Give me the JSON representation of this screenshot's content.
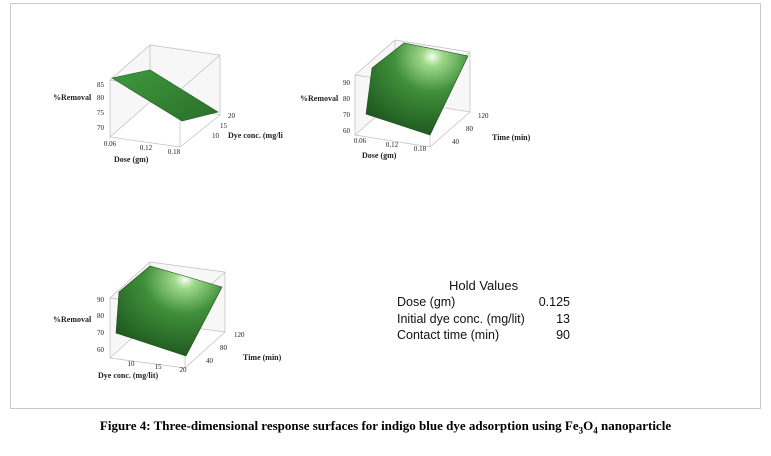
{
  "chart_data": [
    {
      "type": "surface",
      "zlabel": "%Removal",
      "xlabel": "Dose (gm)",
      "ylabel": "Dye conc. (mg/li",
      "z_ticks": [
        "85",
        "80",
        "75",
        "70"
      ],
      "x_ticks": [
        "0.06",
        "0.12",
        "0.18"
      ],
      "y_ticks": [
        "20",
        "15",
        "10"
      ],
      "zlim": [
        70,
        85
      ],
      "surface": {
        "trend": "decreasing with dose",
        "approx_range": [
          75,
          86
        ]
      },
      "color": "#2f7a2f"
    },
    {
      "type": "surface",
      "zlabel": "%Removal",
      "xlabel": "Dose (gm)",
      "ylabel": "Time (min)",
      "z_ticks": [
        "90",
        "80",
        "70",
        "60"
      ],
      "x_ticks": [
        "0.06",
        "0.12",
        "0.18"
      ],
      "y_ticks": [
        "120",
        "80",
        "40"
      ],
      "zlim": [
        60,
        90
      ],
      "surface": {
        "trend": "increasing with time",
        "approx_range": [
          60,
          95
        ]
      },
      "color": "#2f7a2f"
    },
    {
      "type": "surface",
      "zlabel": "%Removal",
      "xlabel": "Dye conc. (mg/lit)",
      "ylabel": "Time (min)",
      "z_ticks": [
        "90",
        "80",
        "70",
        "60"
      ],
      "x_ticks": [
        "10",
        "15",
        "20"
      ],
      "y_ticks": [
        "120",
        "80",
        "40"
      ],
      "zlim": [
        60,
        90
      ],
      "surface": {
        "trend": "increasing with time",
        "approx_range": [
          62,
          95
        ]
      },
      "color": "#2f7a2f"
    }
  ],
  "hold_values": {
    "title": "Hold Values",
    "rows": [
      {
        "label": "Dose (gm)",
        "value": "0.125"
      },
      {
        "label": "Initial dye conc. (mg/lit)",
        "value": "13"
      },
      {
        "label": "Contact time (min)",
        "value": "90"
      }
    ]
  },
  "caption": {
    "prefix": "Figure 4: Three-dimensional response surfaces for indigo blue dye adsorption using Fe",
    "sub1": "3",
    "mid": "O",
    "sub2": "4",
    "suffix": " nanoparticle"
  }
}
